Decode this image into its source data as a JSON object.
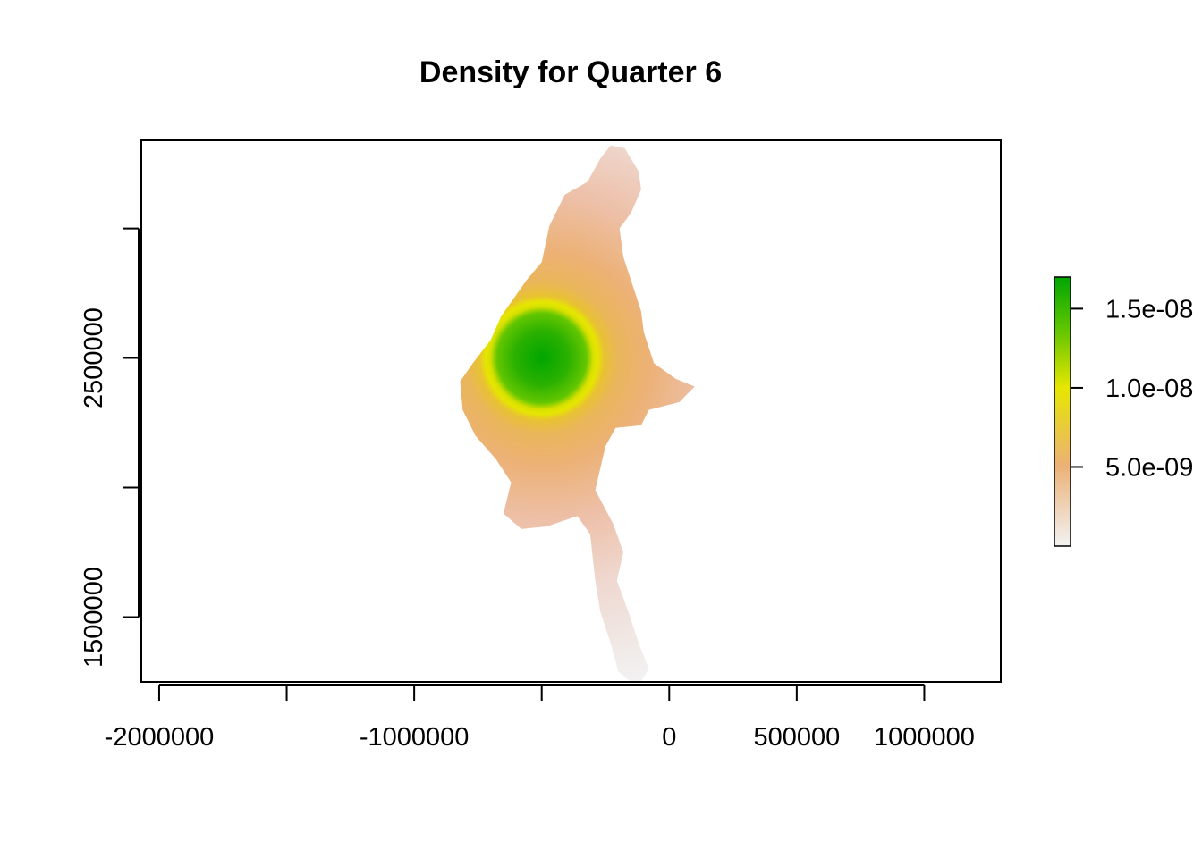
{
  "chart_data": {
    "type": "heatmap",
    "title": "Density for Quarter 6",
    "xlabel": "",
    "ylabel": "",
    "xlim": [
      -2070000,
      1300000
    ],
    "ylim": [
      1250000,
      3340000
    ],
    "x_ticks": [
      {
        "value": -2000000,
        "label": "-2000000"
      },
      {
        "value": -1500000,
        "label": ""
      },
      {
        "value": -1000000,
        "label": "-1000000"
      },
      {
        "value": -500000,
        "label": ""
      },
      {
        "value": 0,
        "label": "0"
      },
      {
        "value": 500000,
        "label": "500000"
      },
      {
        "value": 1000000,
        "label": "1000000"
      }
    ],
    "y_ticks": [
      {
        "value": 1500000,
        "label": "1500000"
      },
      {
        "value": 2000000,
        "label": ""
      },
      {
        "value": 2500000,
        "label": "2500000"
      },
      {
        "value": 3000000,
        "label": ""
      }
    ],
    "density_peak": {
      "x": -500000,
      "y": 2500000,
      "value": 1.7e-08
    },
    "legend": {
      "position": "right",
      "range": [
        0,
        1.7e-08
      ],
      "ticks": [
        {
          "value": 5e-09,
          "label": "5.0e-09"
        },
        {
          "value": 1e-08,
          "label": "1.0e-08"
        },
        {
          "value": 1.5e-08,
          "label": "1.5e-08"
        }
      ],
      "colors": [
        "#f2f2f2",
        "#ecb176",
        "#e6e600",
        "#63c600",
        "#00a600"
      ]
    },
    "region_outline_xy": [
      [
        -230000,
        3320000
      ],
      [
        -175000,
        3310000
      ],
      [
        -120000,
        3220000
      ],
      [
        -110000,
        3150000
      ],
      [
        -150000,
        3060000
      ],
      [
        -195000,
        3000000
      ],
      [
        -180000,
        2890000
      ],
      [
        -110000,
        2680000
      ],
      [
        -100000,
        2600000
      ],
      [
        -60000,
        2480000
      ],
      [
        25000,
        2420000
      ],
      [
        100000,
        2390000
      ],
      [
        40000,
        2330000
      ],
      [
        -80000,
        2300000
      ],
      [
        -110000,
        2240000
      ],
      [
        -210000,
        2230000
      ],
      [
        -250000,
        2160000
      ],
      [
        -290000,
        1990000
      ],
      [
        -220000,
        1860000
      ],
      [
        -180000,
        1750000
      ],
      [
        -205000,
        1640000
      ],
      [
        -160000,
        1520000
      ],
      [
        -120000,
        1400000
      ],
      [
        -80000,
        1300000
      ],
      [
        -125000,
        1230000
      ],
      [
        -200000,
        1290000
      ],
      [
        -230000,
        1400000
      ],
      [
        -270000,
        1520000
      ],
      [
        -290000,
        1640000
      ],
      [
        -310000,
        1820000
      ],
      [
        -360000,
        1890000
      ],
      [
        -480000,
        1850000
      ],
      [
        -580000,
        1840000
      ],
      [
        -650000,
        1900000
      ],
      [
        -620000,
        2020000
      ],
      [
        -680000,
        2110000
      ],
      [
        -760000,
        2200000
      ],
      [
        -810000,
        2300000
      ],
      [
        -820000,
        2410000
      ],
      [
        -770000,
        2480000
      ],
      [
        -700000,
        2570000
      ],
      [
        -660000,
        2660000
      ],
      [
        -560000,
        2800000
      ],
      [
        -500000,
        2870000
      ],
      [
        -470000,
        3010000
      ],
      [
        -410000,
        3130000
      ],
      [
        -320000,
        3180000
      ],
      [
        -270000,
        3270000
      ]
    ]
  }
}
